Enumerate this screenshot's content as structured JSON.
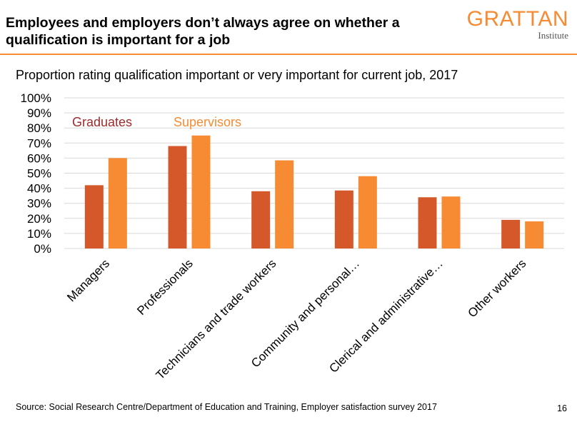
{
  "slide": {
    "title": "Employees and employers don’t always agree on whether a qualification is important for a job",
    "logo_word": "GRATTAN",
    "logo_sub": "Institute",
    "source": "Source: Social Research Centre/Department of Education and Training, Employer satisfaction survey 2017",
    "page_number": "16"
  },
  "chart_data": {
    "type": "bar",
    "title": "Proportion rating qualification important or very important for current job, 2017",
    "categories": [
      "Managers",
      "Professionals",
      "Technicians and trade workers",
      "Community and personal…",
      "Clerical and administrative…",
      "Other workers"
    ],
    "series": [
      {
        "name": "Graduates",
        "values": [
          42,
          68,
          38,
          38.5,
          34,
          19
        ],
        "color": "#D4582A"
      },
      {
        "name": "Supervisors",
        "values": [
          60,
          75,
          58.5,
          48,
          34.5,
          18
        ],
        "color": "#F68B33"
      }
    ],
    "ylim": [
      0,
      100
    ],
    "yticks": [
      "0%",
      "10%",
      "20%",
      "30%",
      "40%",
      "50%",
      "60%",
      "70%",
      "80%",
      "90%",
      "100%"
    ],
    "ytick_values": [
      0,
      10,
      20,
      30,
      40,
      50,
      60,
      70,
      80,
      90,
      100
    ],
    "grid": true,
    "legend": "inline labels top-left",
    "label_colors": {
      "Graduates": "#A02B2D",
      "Supervisors": "#F68B33"
    }
  }
}
